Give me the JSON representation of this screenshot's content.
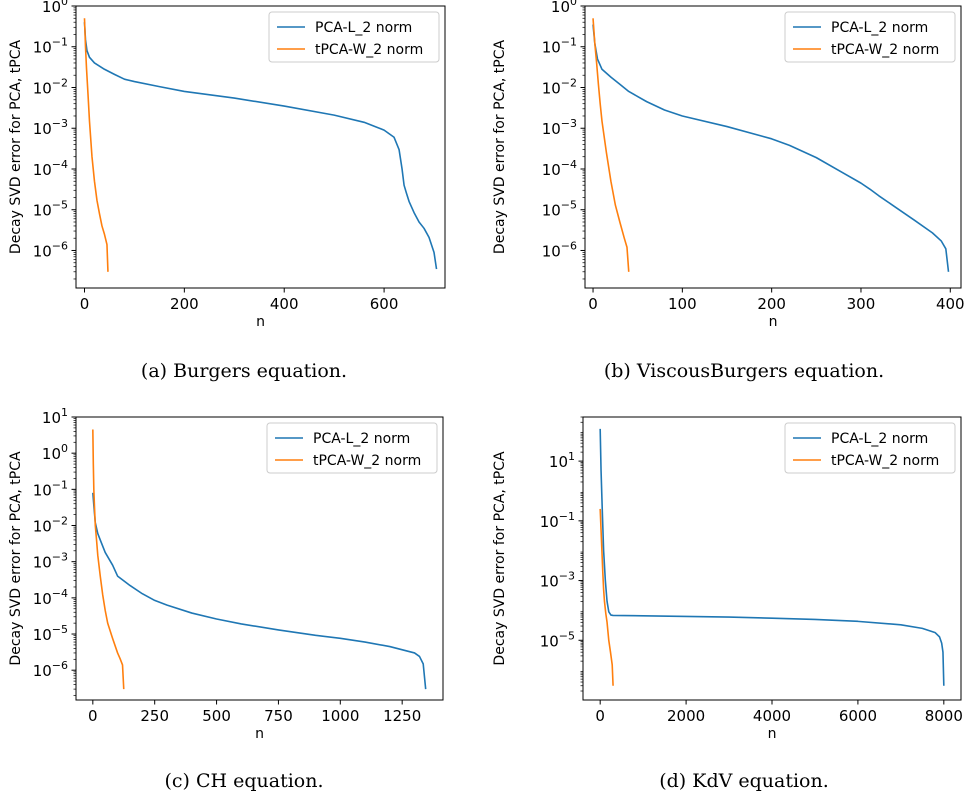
{
  "colors": {
    "pca": "#1f77b4",
    "tpca": "#ff7f0e"
  },
  "chart_data": [
    {
      "type": "line",
      "caption": "(a) Burgers equation.",
      "xlabel": "n",
      "ylabel": "Decay SVD error for PCA, tPCA",
      "yscale": "log",
      "xlim": [
        -17,
        722
      ],
      "ylim": [
        1.2e-07,
        1
      ],
      "xticks": [
        0,
        200,
        400,
        600
      ],
      "xtick_labels": [
        "0",
        "200",
        "400",
        "600"
      ],
      "yticks": [
        1e-06,
        1e-05,
        0.0001,
        0.001,
        0.01,
        0.1,
        1
      ],
      "ytick_labels": [
        [
          "10",
          "−6"
        ],
        [
          "10",
          "−5"
        ],
        [
          "10",
          "−4"
        ],
        [
          "10",
          "−3"
        ],
        [
          "10",
          "−2"
        ],
        [
          "10",
          "−1"
        ],
        [
          "10",
          "0"
        ]
      ],
      "grid": false,
      "legend_position": "upper right",
      "series": [
        {
          "name": "PCA-L_2 norm",
          "color": "#1f77b4",
          "x": [
            0,
            2,
            5,
            10,
            20,
            40,
            60,
            80,
            100,
            150,
            200,
            300,
            400,
            500,
            560,
            600,
            620,
            630,
            636,
            640,
            645,
            650,
            660,
            670,
            680,
            690,
            700,
            705
          ],
          "y": [
            0.4,
            0.15,
            0.08,
            0.055,
            0.04,
            0.028,
            0.021,
            0.016,
            0.014,
            0.0105,
            0.008,
            0.0055,
            0.0035,
            0.0021,
            0.0014,
            0.0009,
            0.0006,
            0.0003,
            0.0001,
            4e-05,
            2.5e-05,
            1.6e-05,
            8.5e-06,
            5e-06,
            3.5e-06,
            2.1e-06,
            9e-07,
            3.5e-07
          ]
        },
        {
          "name": "tPCA-W_2 norm",
          "color": "#ff7f0e",
          "x": [
            0,
            2,
            4,
            7,
            10,
            15,
            20,
            25,
            30,
            35,
            40,
            45,
            47
          ],
          "y": [
            0.5,
            0.1,
            0.03,
            0.007,
            0.0015,
            0.0002,
            5e-05,
            1.7e-05,
            8e-06,
            4e-06,
            2.5e-06,
            1.4e-06,
            3e-07
          ]
        }
      ]
    },
    {
      "type": "line",
      "caption": "(b) ViscousBurgers equation.",
      "xlabel": "n",
      "ylabel": "Decay SVD error for PCA, tPCA",
      "yscale": "log",
      "xlim": [
        -9,
        412
      ],
      "ylim": [
        1.2e-07,
        1
      ],
      "xticks": [
        0,
        100,
        200,
        300,
        400
      ],
      "xtick_labels": [
        "0",
        "100",
        "200",
        "300",
        "400"
      ],
      "yticks": [
        1e-06,
        1e-05,
        0.0001,
        0.001,
        0.01,
        0.1,
        1
      ],
      "ytick_labels": [
        [
          "10",
          "−6"
        ],
        [
          "10",
          "−5"
        ],
        [
          "10",
          "−4"
        ],
        [
          "10",
          "−3"
        ],
        [
          "10",
          "−2"
        ],
        [
          "10",
          "−1"
        ],
        [
          "10",
          "0"
        ]
      ],
      "grid": false,
      "legend_position": "upper right",
      "series": [
        {
          "name": "PCA-L_2 norm",
          "color": "#1f77b4",
          "x": [
            0,
            2,
            5,
            10,
            20,
            30,
            40,
            50,
            60,
            80,
            100,
            150,
            200,
            220,
            250,
            280,
            300,
            310,
            320,
            340,
            360,
            380,
            390,
            395,
            398
          ],
          "y": [
            0.35,
            0.12,
            0.05,
            0.028,
            0.018,
            0.012,
            0.008,
            0.006,
            0.0045,
            0.0028,
            0.002,
            0.0011,
            0.00055,
            0.00038,
            0.00019,
            8e-05,
            4.5e-05,
            3.2e-05,
            2.2e-05,
            1.1e-05,
            5.5e-06,
            2.7e-06,
            1.7e-06,
            1.1e-06,
            3e-07
          ]
        },
        {
          "name": "tPCA-W_2 norm",
          "color": "#ff7f0e",
          "x": [
            0,
            2,
            4,
            6,
            8,
            10,
            15,
            20,
            25,
            30,
            35,
            38,
            40
          ],
          "y": [
            0.5,
            0.12,
            0.04,
            0.012,
            0.004,
            0.0015,
            0.00025,
            5e-05,
            1.3e-05,
            5e-06,
            2e-06,
            1.2e-06,
            3e-07
          ]
        }
      ]
    },
    {
      "type": "line",
      "caption": "(c) CH equation.",
      "xlabel": "n",
      "ylabel": "Decay SVD error for PCA, tPCA",
      "yscale": "log",
      "xlim": [
        -68,
        1415
      ],
      "ylim": [
        1.5e-07,
        10
      ],
      "xticks": [
        0,
        250,
        500,
        750,
        1000,
        1250
      ],
      "xtick_labels": [
        "0",
        "250",
        "500",
        "750",
        "1000",
        "1250"
      ],
      "yticks": [
        1e-06,
        1e-05,
        0.0001,
        0.001,
        0.01,
        0.1,
        1,
        10
      ],
      "ytick_labels": [
        [
          "10",
          "−6"
        ],
        [
          "10",
          "−5"
        ],
        [
          "10",
          "−4"
        ],
        [
          "10",
          "−3"
        ],
        [
          "10",
          "−2"
        ],
        [
          "10",
          "−1"
        ],
        [
          "10",
          "0"
        ],
        [
          "10",
          "1"
        ]
      ],
      "grid": false,
      "legend_position": "upper right",
      "series": [
        {
          "name": "PCA-L_2 norm",
          "color": "#1f77b4",
          "x": [
            0,
            5,
            10,
            20,
            30,
            50,
            80,
            100,
            150,
            200,
            250,
            300,
            400,
            500,
            600,
            750,
            900,
            1000,
            1100,
            1200,
            1300,
            1320,
            1335,
            1345
          ],
          "y": [
            0.08,
            0.03,
            0.012,
            0.006,
            0.004,
            0.0018,
            0.0008,
            0.0004,
            0.00022,
            0.00013,
            8.5e-05,
            6.3e-05,
            3.8e-05,
            2.6e-05,
            1.9e-05,
            1.3e-05,
            9.2e-06,
            7.6e-06,
            6e-06,
            4.5e-06,
            3e-06,
            2.4e-06,
            1.5e-06,
            3e-07
          ]
        },
        {
          "name": "tPCA-W_2 norm",
          "color": "#ff7f0e",
          "x": [
            0,
            2,
            4,
            7,
            10,
            15,
            20,
            30,
            40,
            50,
            60,
            80,
            100,
            110,
            120,
            125
          ],
          "y": [
            4.5,
            0.5,
            0.1,
            0.03,
            0.01,
            0.004,
            0.0015,
            0.0004,
            0.00012,
            4.5e-05,
            2e-05,
            7.5e-06,
            3e-06,
            2.1e-06,
            1.4e-06,
            3e-07
          ]
        }
      ]
    },
    {
      "type": "line",
      "caption": "(d) KdV equation.",
      "xlabel": "n",
      "ylabel": "Decay SVD error for PCA, tPCA",
      "yscale": "log",
      "xlim": [
        -400,
        8400
      ],
      "ylim": [
        1e-07,
        300
      ],
      "xticks": [
        0,
        2000,
        4000,
        6000,
        8000
      ],
      "xtick_labels": [
        "0",
        "2000",
        "4000",
        "6000",
        "8000"
      ],
      "yticks": [
        1e-05,
        0.001,
        0.1,
        10
      ],
      "ytick_labels": [
        [
          "10",
          "−5"
        ],
        [
          "10",
          "−3"
        ],
        [
          "10",
          "−1"
        ],
        [
          "10",
          "1"
        ]
      ],
      "grid": false,
      "legend_position": "upper right",
      "series": [
        {
          "name": "PCA-L_2 norm",
          "color": "#1f77b4",
          "x": [
            0,
            20,
            50,
            80,
            120,
            160,
            200,
            250,
            300,
            1000,
            2000,
            3000,
            4000,
            5000,
            6000,
            7000,
            7500,
            7800,
            7900,
            7950,
            7980,
            8000
          ],
          "y": [
            120,
            5,
            0.2,
            0.01,
            0.001,
            0.0002,
            9e-05,
            7e-05,
            6.8e-05,
            6.6e-05,
            6.3e-05,
            6e-05,
            5.5e-05,
            5e-05,
            4.3e-05,
            3.3e-05,
            2.5e-05,
            1.8e-05,
            1.3e-05,
            8e-06,
            4e-06,
            3e-07
          ]
        },
        {
          "name": "tPCA-W_2 norm",
          "color": "#ff7f0e",
          "x": [
            0,
            20,
            40,
            60,
            80,
            100,
            130,
            160,
            200,
            240,
            280,
            300
          ],
          "y": [
            0.25,
            0.05,
            0.01,
            0.002,
            0.0005,
            0.0002,
            8e-05,
            4e-05,
            1e-05,
            4e-06,
            1.5e-06,
            3e-07
          ]
        }
      ]
    }
  ]
}
